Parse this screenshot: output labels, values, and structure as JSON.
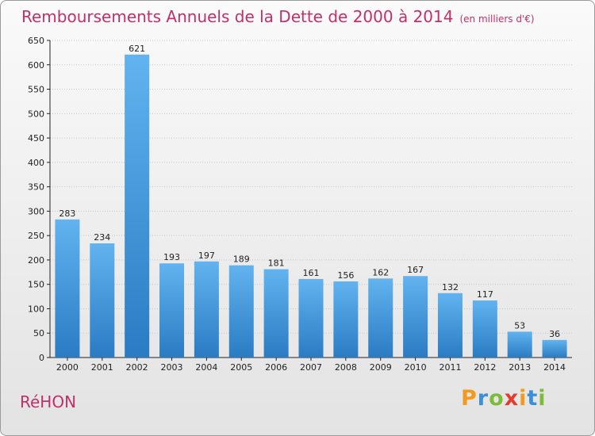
{
  "header": {
    "title": "Remboursements Annuels de la Dette de 2000 à 2014",
    "subtitle": "(en milliers d'€)"
  },
  "footer": {
    "place": "RéHON",
    "logo": "Proxiti"
  },
  "colors": {
    "title": "#c0306a",
    "bar_top": "#62b3ef",
    "bar_bottom": "#2a7bc3",
    "grid": "#c8c8c8",
    "axis": "#222222",
    "logo_letters": [
      "#f39a1e",
      "#3a8fd6",
      "#7dbb3a",
      "#e43b2d",
      "#f39a1e",
      "#3a8fd6",
      "#7dbb3a"
    ]
  },
  "chart_data": {
    "type": "bar",
    "title": "Remboursements Annuels de la Dette de 2000 à 2014",
    "xlabel": "",
    "ylabel": "",
    "categories": [
      "2000",
      "2001",
      "2002",
      "2003",
      "2004",
      "2005",
      "2006",
      "2007",
      "2008",
      "2009",
      "2010",
      "2011",
      "2012",
      "2013",
      "2014"
    ],
    "values": [
      283,
      234,
      621,
      193,
      197,
      189,
      181,
      161,
      156,
      162,
      167,
      132,
      117,
      53,
      36
    ],
    "ylim": [
      0,
      650
    ],
    "yticks": [
      0,
      50,
      100,
      150,
      200,
      250,
      300,
      350,
      400,
      450,
      500,
      550,
      600,
      650
    ],
    "grid": true,
    "data_labels": true
  }
}
